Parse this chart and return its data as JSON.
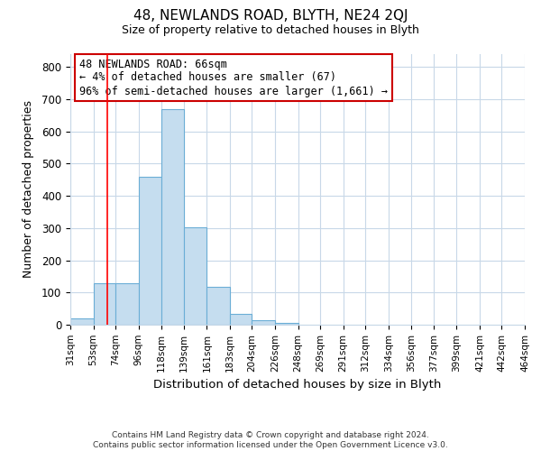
{
  "title": "48, NEWLANDS ROAD, BLYTH, NE24 2QJ",
  "subtitle": "Size of property relative to detached houses in Blyth",
  "xlabel": "Distribution of detached houses by size in Blyth",
  "ylabel": "Number of detached properties",
  "bar_color": "#c5ddef",
  "bar_edge_color": "#6baed6",
  "bin_edges": [
    31,
    53,
    74,
    96,
    118,
    139,
    161,
    183,
    204,
    226,
    248,
    269,
    291,
    312,
    334,
    356,
    377,
    399,
    421,
    442,
    464
  ],
  "bar_heights": [
    20,
    128,
    130,
    460,
    668,
    302,
    118,
    35,
    14,
    7,
    0,
    0,
    0,
    0,
    0,
    0,
    0,
    0,
    0,
    0
  ],
  "red_line_x": 66,
  "ylim": [
    0,
    840
  ],
  "yticks": [
    0,
    100,
    200,
    300,
    400,
    500,
    600,
    700,
    800
  ],
  "annotation_text": "48 NEWLANDS ROAD: 66sqm\n← 4% of detached houses are smaller (67)\n96% of semi-detached houses are larger (1,661) →",
  "annotation_box_color": "#ffffff",
  "annotation_box_edge": "#cc0000",
  "footer_line1": "Contains HM Land Registry data © Crown copyright and database right 2024.",
  "footer_line2": "Contains public sector information licensed under the Open Government Licence v3.0.",
  "background_color": "#ffffff",
  "grid_color": "#c8d8e8"
}
